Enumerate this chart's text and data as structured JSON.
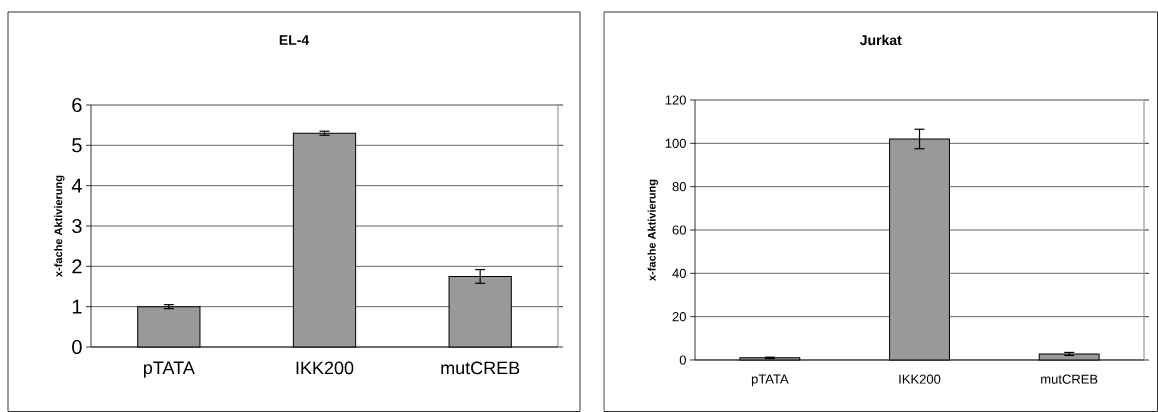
{
  "chart_data": [
    {
      "type": "bar",
      "title": "EL-4",
      "ylabel": "x-fache Aktivierung",
      "categories": [
        "pTATA",
        "IKK200",
        "mutCREB"
      ],
      "values": [
        1.0,
        5.3,
        1.75
      ],
      "errors": [
        0.05,
        0.05,
        0.17
      ],
      "color": "#999999",
      "ylim": [
        0,
        6
      ],
      "yticks": [
        0,
        1,
        2,
        3,
        4,
        5,
        6
      ],
      "grid": "y"
    },
    {
      "type": "bar",
      "title": "Jurkat",
      "ylabel": "x-fache Aktivierung",
      "categories": [
        "pTATA",
        "IKK200",
        "mutCREB"
      ],
      "values": [
        1,
        102,
        2.8
      ],
      "errors": [
        0.3,
        4.5,
        0.7
      ],
      "color": "#999999",
      "ylim": [
        0,
        120
      ],
      "yticks": [
        0,
        20,
        40,
        60,
        80,
        100,
        120
      ],
      "grid": "y"
    }
  ]
}
